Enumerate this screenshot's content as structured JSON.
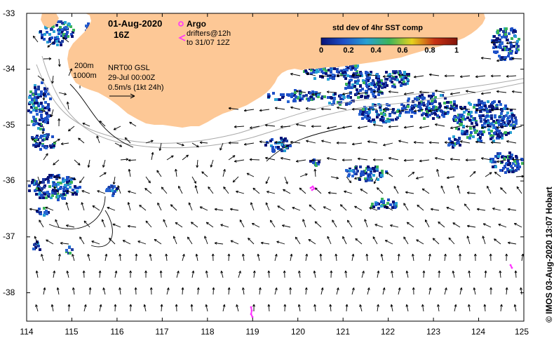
{
  "map": {
    "title": "01-Aug-2020 16Z",
    "date_line": "01-Aug-2020",
    "hour_line": "16Z",
    "lon_ticks": [
      "114",
      "115",
      "116",
      "117",
      "118",
      "119",
      "120",
      "121",
      "122",
      "123",
      "124",
      "125"
    ],
    "lat_ticks": [
      "-33",
      "-34",
      "-35",
      "-36",
      "-37",
      "-38"
    ],
    "land_color": "#fdc896",
    "sst_colorbar": {
      "title": "std dev of 4hr SST comp",
      "ticks": [
        "0",
        "0.2",
        "0.4",
        "0.6",
        "0.8",
        "1"
      ],
      "colors": [
        "#0a1478",
        "#1e50c8",
        "#28a0d2",
        "#3cb45a",
        "#e6d21e",
        "#c83214",
        "#82140a"
      ]
    },
    "legend": {
      "argo_label": "Argo",
      "argo_color": "#ff33ff",
      "drifter_line1": "drifters@12h",
      "drifter_line2": "to 31/07 12Z",
      "drifter_color": "#ff33ff"
    },
    "depth_labels": [
      "200m",
      "1000m"
    ],
    "currents": {
      "source": "NRT00 GSL",
      "date": "29-Jul 00:00Z",
      "scale": "0.5m/s (1kt 24h)"
    },
    "credit": "© IMOS 03-Aug-2020 13:07 Hobart"
  }
}
